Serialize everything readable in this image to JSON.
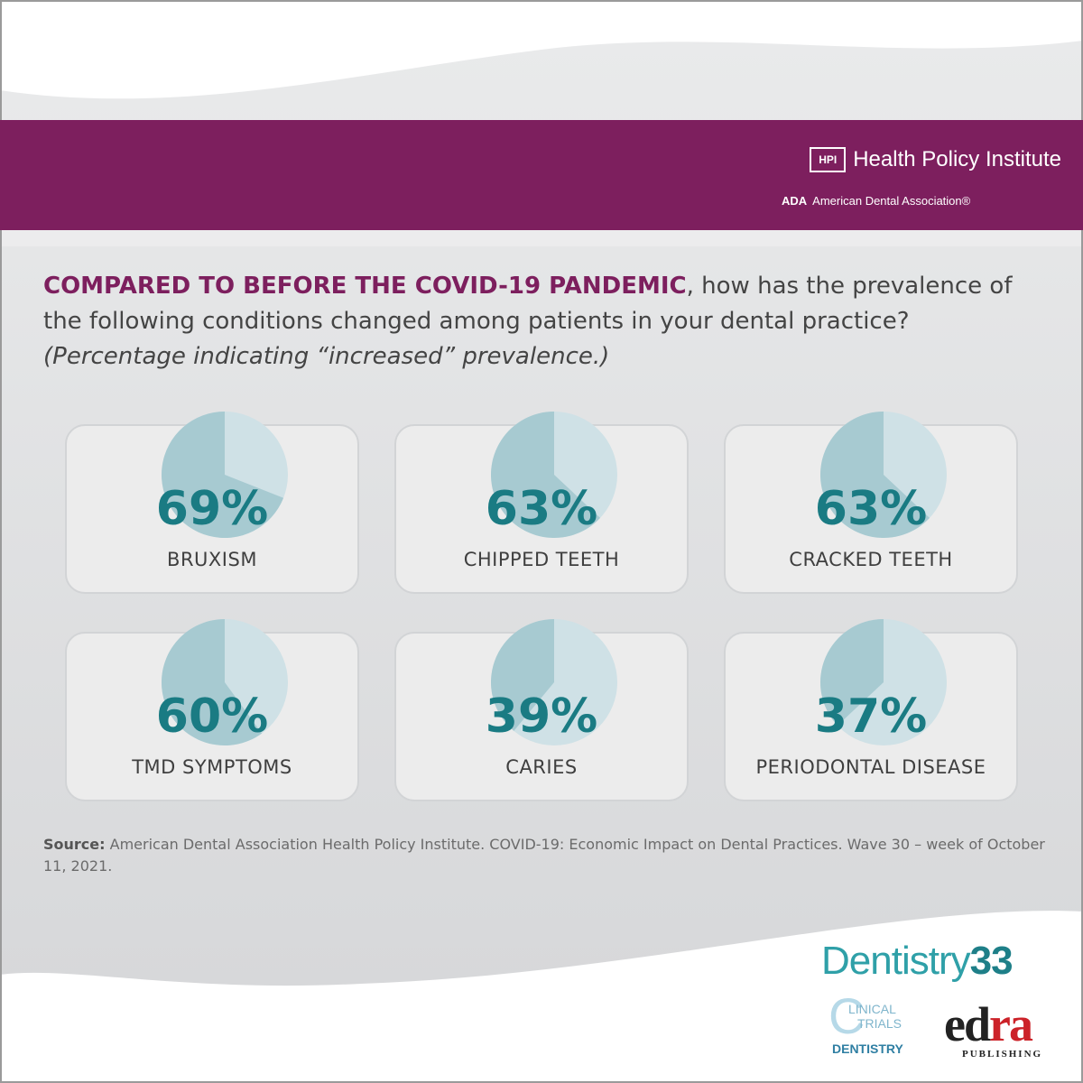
{
  "header": {
    "hpi_badge": "HPI",
    "hpi_title": "Health Policy Institute",
    "ada_abbr": "ADA",
    "ada_name": "American Dental Association®"
  },
  "question": {
    "lead": "COMPARED TO BEFORE THE COVID-19 PANDEMIC",
    "rest": ", how has the prevalence of the following conditions changed among patients in your dental practice?",
    "subtitle": "(Percentage indicating “increased” prevalence.)"
  },
  "colors": {
    "brand": "#7d1f5e",
    "pie_filled": "#a7cad1",
    "pie_rest": "#cfe1e6",
    "value_text": "#1a7b83"
  },
  "chart_data": {
    "type": "pie",
    "unit": "%",
    "items": [
      {
        "label": "BRUXISM",
        "value": 69,
        "display": "69%"
      },
      {
        "label": "CHIPPED TEETH",
        "value": 63,
        "display": "63%"
      },
      {
        "label": "CRACKED TEETH",
        "value": 63,
        "display": "63%"
      },
      {
        "label": "TMD SYMPTOMS",
        "value": 60,
        "display": "60%"
      },
      {
        "label": "CARIES",
        "value": 39,
        "display": "39%"
      },
      {
        "label": "PERIODONTAL DISEASE",
        "value": 37,
        "display": "37%"
      }
    ]
  },
  "source": {
    "label": "Source:",
    "text": " American Dental Association Health Policy Institute. COVID-19: Economic Impact on Dental Practices. Wave 30 – week of October 11, 2021."
  },
  "logos": {
    "dentistry_word": "Dentistry",
    "dentistry_num": "33",
    "ct_c": "C",
    "ct_line1": "LINICAL",
    "ct_line2": "TRIALS",
    "ct_line3": "DENTISTRY",
    "edra_e": "e",
    "edra_d": "d",
    "edra_ra": "ra",
    "edra_pub": "PUBLISHING"
  }
}
